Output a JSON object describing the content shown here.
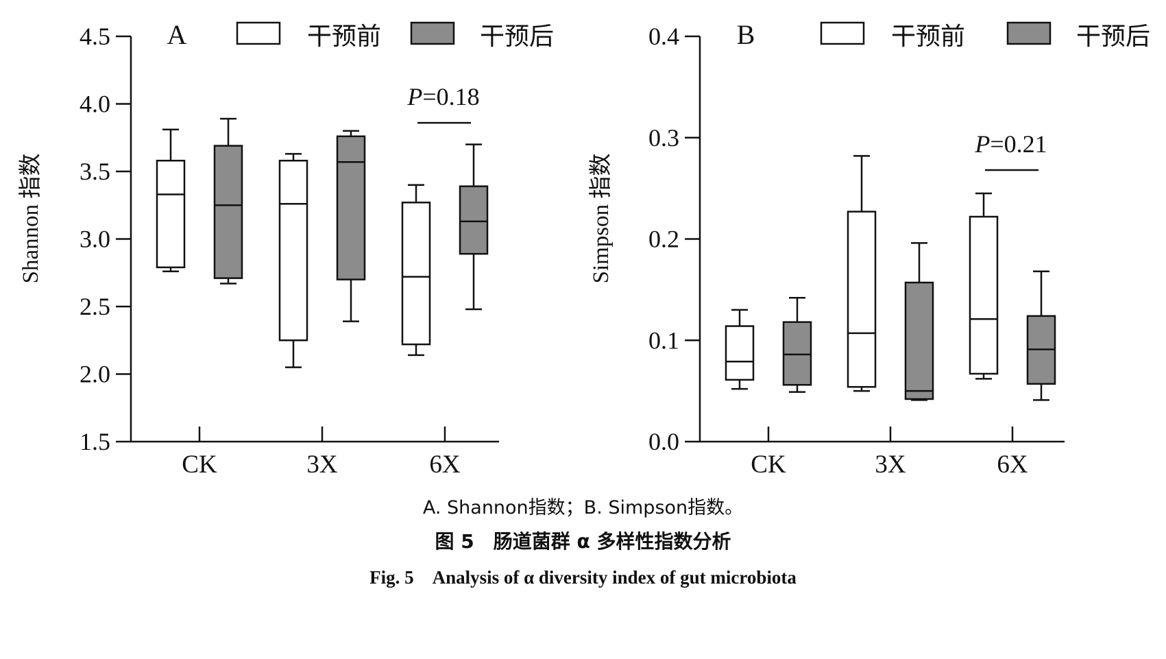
{
  "chart_data": [
    {
      "type": "box",
      "panel_letter": "A",
      "ylabel": "Shannon 指数",
      "ylim": [
        1.5,
        4.5
      ],
      "yticks": [
        "1.5",
        "2.0",
        "2.5",
        "3.0",
        "3.5",
        "4.0",
        "4.5"
      ],
      "categories": [
        "CK",
        "3X",
        "6X"
      ],
      "legend_position": "top",
      "series": [
        {
          "name": "干预前",
          "color": "#ffffff",
          "boxes": [
            {
              "whisker_low": 2.76,
              "q1": 2.79,
              "median": 3.33,
              "q3": 3.58,
              "whisker_high": 3.81
            },
            {
              "whisker_low": 2.05,
              "q1": 2.25,
              "median": 3.26,
              "q3": 3.58,
              "whisker_high": 3.63
            },
            {
              "whisker_low": 2.14,
              "q1": 2.22,
              "median": 2.72,
              "q3": 3.27,
              "whisker_high": 3.4
            }
          ]
        },
        {
          "name": "干预后",
          "color": "#8c8c8c",
          "boxes": [
            {
              "whisker_low": 2.67,
              "q1": 2.71,
              "median": 3.25,
              "q3": 3.69,
              "whisker_high": 3.89
            },
            {
              "whisker_low": 2.39,
              "q1": 2.7,
              "median": 3.57,
              "q3": 3.76,
              "whisker_high": 3.8
            },
            {
              "whisker_low": 2.48,
              "q1": 2.89,
              "median": 3.13,
              "q3": 3.39,
              "whisker_high": 3.7
            }
          ]
        }
      ],
      "annotation": {
        "category": "6X",
        "p_label": "P",
        "p_value": "=0.18",
        "y": 3.86
      }
    },
    {
      "type": "box",
      "panel_letter": "B",
      "ylabel": "Simpson 指数",
      "ylim": [
        0.0,
        0.4
      ],
      "yticks": [
        "0.0",
        "0.1",
        "0.2",
        "0.3",
        "0.4"
      ],
      "categories": [
        "CK",
        "3X",
        "6X"
      ],
      "legend_position": "top",
      "series": [
        {
          "name": "干预前",
          "color": "#ffffff",
          "boxes": [
            {
              "whisker_low": 0.052,
              "q1": 0.061,
              "median": 0.079,
              "q3": 0.114,
              "whisker_high": 0.13
            },
            {
              "whisker_low": 0.05,
              "q1": 0.054,
              "median": 0.107,
              "q3": 0.227,
              "whisker_high": 0.282
            },
            {
              "whisker_low": 0.062,
              "q1": 0.067,
              "median": 0.121,
              "q3": 0.222,
              "whisker_high": 0.245
            }
          ]
        },
        {
          "name": "干预后",
          "color": "#8c8c8c",
          "boxes": [
            {
              "whisker_low": 0.049,
              "q1": 0.056,
              "median": 0.086,
              "q3": 0.118,
              "whisker_high": 0.142
            },
            {
              "whisker_low": 0.041,
              "q1": 0.042,
              "median": 0.05,
              "q3": 0.157,
              "whisker_high": 0.196
            },
            {
              "whisker_low": 0.041,
              "q1": 0.057,
              "median": 0.091,
              "q3": 0.124,
              "whisker_high": 0.168
            }
          ]
        }
      ],
      "annotation": {
        "category": "6X",
        "p_label": "P",
        "p_value": "=0.21",
        "y": 0.268
      }
    }
  ],
  "caption": {
    "sub": "A. Shannon指数；B. Simpson指数。",
    "cn": "图 5　肠道菌群 α 多样性指数分析",
    "en": "Fig. 5　Analysis of α diversity index of gut microbiota"
  }
}
